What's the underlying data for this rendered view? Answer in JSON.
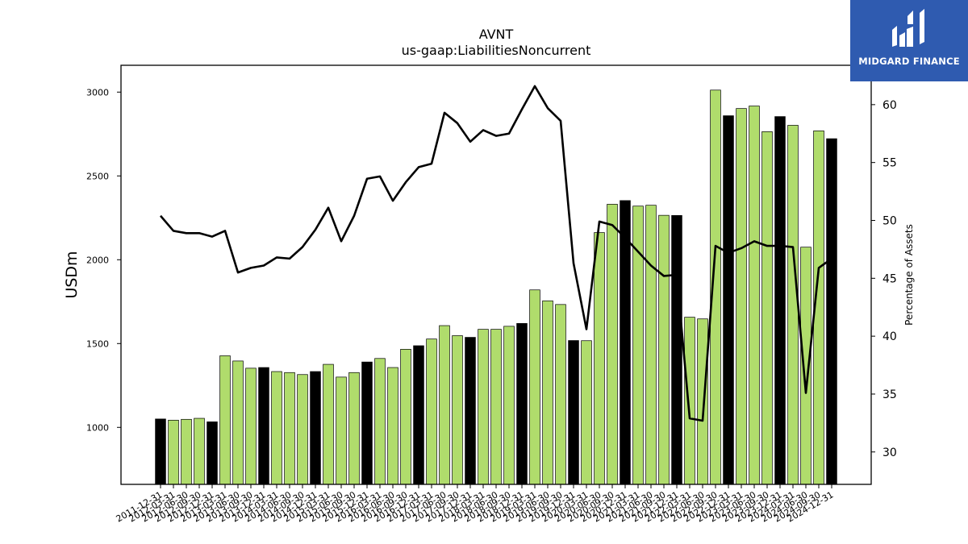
{
  "brand": {
    "name": "MIDGARD FINANCE",
    "background_color": "#2f5bb0",
    "icon": "midgard-m-logo-icon"
  },
  "chart_data": {
    "type": "bar",
    "title": "AVNT",
    "subtitle": "us-gaap:LiabilitiesNoncurrent",
    "ylabel": "USDm",
    "y2label": "Percentage of Assets",
    "ylim": [
      660,
      3160
    ],
    "y2lim": [
      27.2,
      63.4
    ],
    "yticks": [
      1000,
      1500,
      2000,
      2500,
      3000
    ],
    "y2ticks": [
      30,
      35,
      40,
      45,
      50,
      55,
      60
    ],
    "colors": {
      "bar_q": "#b0dc6c",
      "bar_fy": "#000000",
      "line": "#000000"
    },
    "categories": [
      "2011-12-31",
      "2012-03-31",
      "2012-06-30",
      "2012-09-30",
      "2012-12-31",
      "2013-03-31",
      "2013-06-30",
      "2013-09-30",
      "2013-12-31",
      "2014-03-31",
      "2014-06-30",
      "2014-09-30",
      "2014-12-31",
      "2015-03-31",
      "2015-06-30",
      "2015-09-30",
      "2015-12-31",
      "2016-03-31",
      "2016-06-30",
      "2016-09-30",
      "2016-12-31",
      "2017-03-31",
      "2017-06-30",
      "2017-09-30",
      "2017-12-31",
      "2018-03-31",
      "2018-06-30",
      "2018-09-30",
      "2018-12-31",
      "2019-03-31",
      "2019-06-30",
      "2019-09-30",
      "2019-12-31",
      "2020-03-31",
      "2020-06-30",
      "2020-09-30",
      "2020-12-31",
      "2021-03-31",
      "2021-06-30",
      "2021-09-30",
      "2021-12-31",
      "2022-03-31",
      "2022-06-30",
      "2022-09-30",
      "2022-12-31",
      "2023-03-31",
      "2023-06-30",
      "2023-09-30",
      "2023-12-31",
      "2024-03-31",
      "2024-06-30",
      "2024-09-30",
      "2024-12-31"
    ],
    "series": [
      {
        "values": [
          1050,
          1043,
          1048,
          1054,
          1033,
          1427,
          1396,
          1353,
          1357,
          1333,
          1327,
          1315,
          1333,
          1376,
          1300,
          1327,
          1390,
          1411,
          1357,
          1466,
          1487,
          1527,
          1607,
          1547,
          1537,
          1585,
          1585,
          1603,
          1620,
          1820,
          1755,
          1733,
          1518,
          1517,
          2162,
          2331,
          2353,
          2320,
          2325,
          2265,
          2264,
          1657,
          1647,
          3012,
          2859,
          2902,
          2917,
          2764,
          2854,
          2802,
          2075,
          2769,
          2722
        ],
        "highlight": [
          true,
          false,
          false,
          false,
          true,
          false,
          false,
          false,
          true,
          false,
          false,
          false,
          true,
          false,
          false,
          false,
          true,
          false,
          false,
          false,
          true,
          false,
          false,
          false,
          true,
          false,
          false,
          false,
          true,
          false,
          false,
          false,
          true,
          false,
          false,
          false,
          true,
          false,
          false,
          false,
          true,
          false,
          false,
          false,
          true,
          false,
          false,
          false,
          true,
          false,
          false,
          false,
          true
        ]
      },
      {
        "axis": "right",
        "values": [
          50.4,
          49.1,
          48.9,
          48.9,
          48.6,
          49.1,
          45.5,
          45.9,
          46.1,
          46.8,
          46.7,
          47.7,
          49.2,
          51.1,
          48.2,
          50.4,
          53.6,
          53.8,
          51.7,
          53.3,
          54.6,
          54.9,
          59.3,
          58.4,
          56.8,
          57.8,
          57.3,
          57.5,
          59.6,
          61.6,
          59.7,
          58.6,
          46.3,
          40.6,
          49.9,
          49.6,
          48.5,
          47.3,
          46.1,
          45.2,
          45.3,
          32.9,
          32.7,
          47.8,
          47.2,
          47.6,
          48.2,
          47.8,
          47.8,
          47.7,
          35.1,
          45.9,
          46.7
        ]
      }
    ]
  }
}
